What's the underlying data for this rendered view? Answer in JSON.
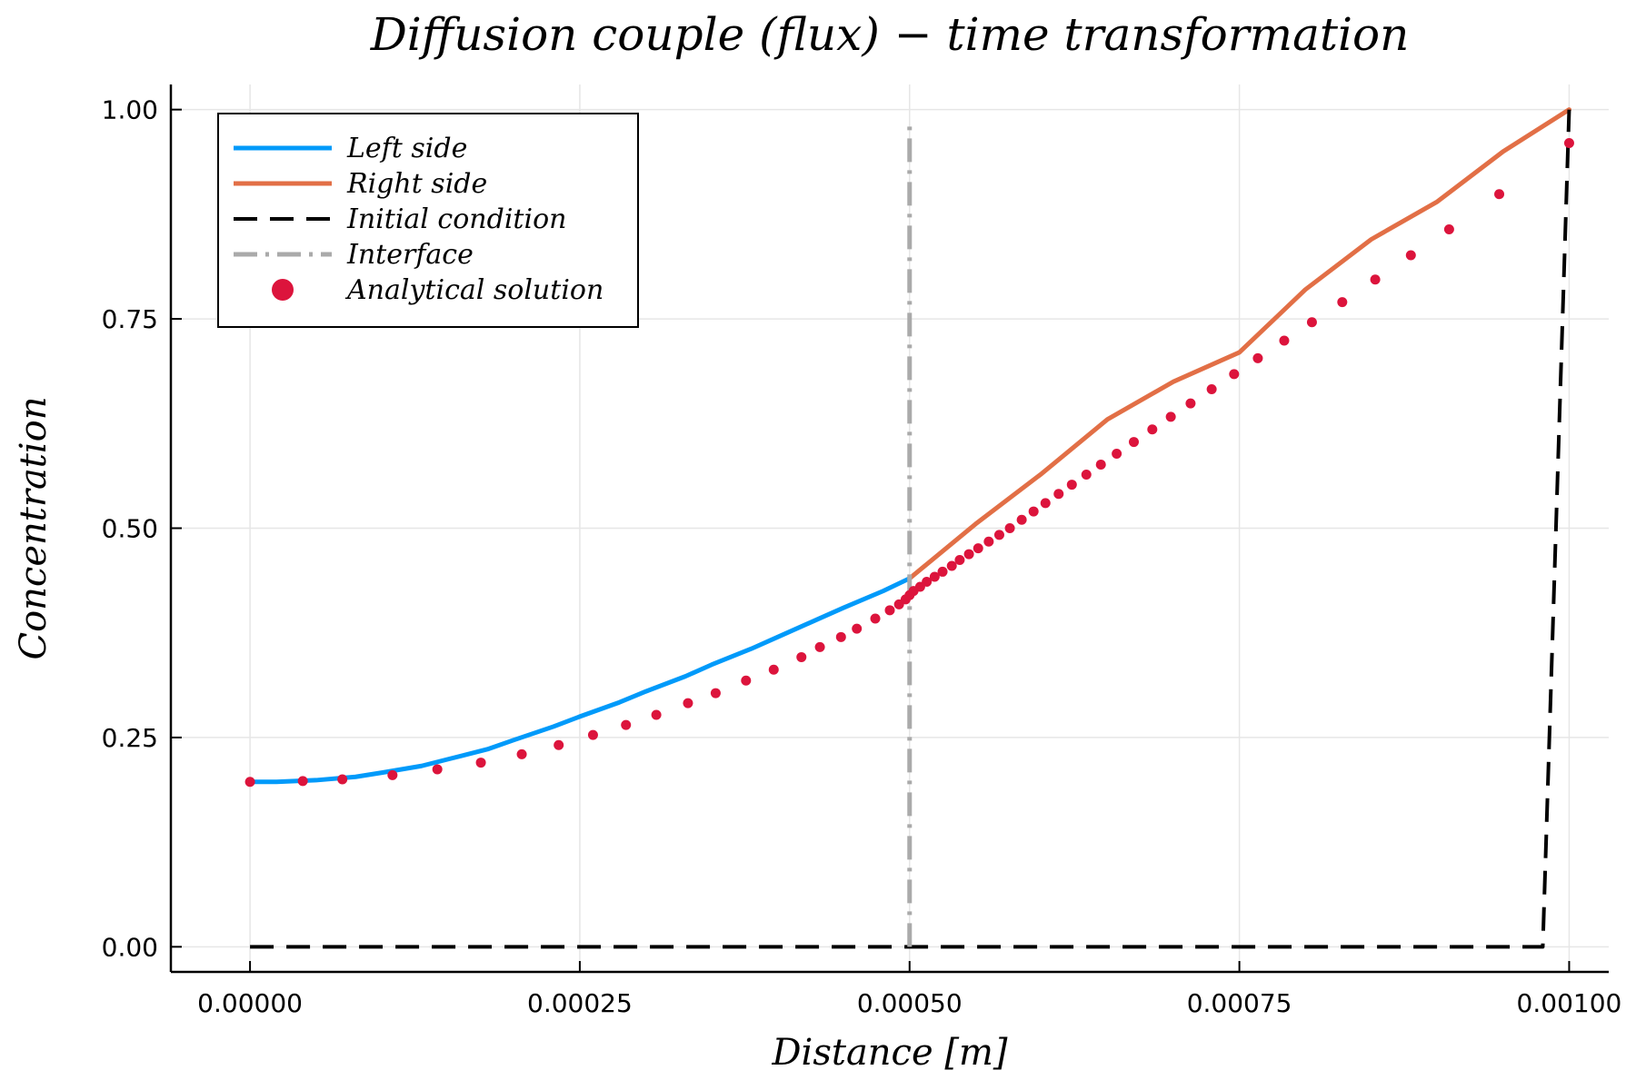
{
  "chart_data": {
    "type": "line",
    "title": "Diffusion couple (flux) − time transformation",
    "xlabel": "Distance [m]",
    "ylabel": "Concentration",
    "xlim": [
      -6e-05,
      0.00103
    ],
    "ylim": [
      -0.03,
      1.03
    ],
    "x_ticks": [
      0,
      0.00025,
      0.0005,
      0.00075,
      0.001
    ],
    "x_tick_labels": [
      "0.00000",
      "0.00025",
      "0.00050",
      "0.00075",
      "0.00100"
    ],
    "y_ticks": [
      0,
      0.25,
      0.5,
      0.75,
      1.0
    ],
    "y_tick_labels": [
      "0.00",
      "0.25",
      "0.50",
      "0.75",
      "1.00"
    ],
    "grid": true,
    "legend_position": "top-left",
    "series": [
      {
        "name": "Left side",
        "kind": "line",
        "color": "#009AFA",
        "x": [
          0,
          2e-05,
          5e-05,
          8e-05,
          0.0001,
          0.00013,
          0.00015,
          0.00018,
          0.0002,
          0.00023,
          0.00025,
          0.00028,
          0.0003,
          0.00033,
          0.00035,
          0.00038,
          0.0004,
          0.00043,
          0.00045,
          0.00048,
          0.0005
        ],
        "y": [
          0.197,
          0.197,
          0.199,
          0.203,
          0.208,
          0.216,
          0.224,
          0.236,
          0.247,
          0.263,
          0.275,
          0.292,
          0.305,
          0.323,
          0.337,
          0.356,
          0.37,
          0.391,
          0.405,
          0.425,
          0.44
        ]
      },
      {
        "name": "Right side",
        "kind": "line",
        "color": "#E26F46",
        "x": [
          0.0005,
          0.00055,
          0.0006,
          0.00065,
          0.0007,
          0.00075,
          0.0008,
          0.00085,
          0.0009,
          0.00095,
          0.001
        ],
        "y": [
          0.44,
          0.505,
          0.565,
          0.63,
          0.675,
          0.71,
          0.785,
          0.845,
          0.89,
          0.95,
          1.0
        ]
      },
      {
        "name": "Initial condition",
        "kind": "dashed-line",
        "color": "#000000",
        "x": [
          0,
          0.00098,
          0.001
        ],
        "y": [
          0,
          0,
          1
        ]
      },
      {
        "name": "Interface",
        "kind": "dashdot-line",
        "color": "#AAAAAA",
        "x": [
          0.0005,
          0.0005
        ],
        "y": [
          0,
          0.985
        ]
      },
      {
        "name": "Analytical solution",
        "kind": "scatter",
        "color": "#DC143C",
        "x": [
          0,
          4e-05,
          7e-05,
          0.000108,
          0.000142,
          0.000175,
          0.000206,
          0.000234,
          0.00026,
          0.000285,
          0.000308,
          0.000332,
          0.000353,
          0.000376,
          0.000397,
          0.000418,
          0.000432,
          0.000448,
          0.00046,
          0.000474,
          0.000485,
          0.000492,
          0.000497,
          0.0005,
          0.000503,
          0.000508,
          0.000513,
          0.000519,
          0.000525,
          0.000532,
          0.000538,
          0.000545,
          0.000552,
          0.00056,
          0.000568,
          0.000576,
          0.000585,
          0.000594,
          0.000603,
          0.000613,
          0.000623,
          0.000634,
          0.000645,
          0.000657,
          0.00067,
          0.000684,
          0.000698,
          0.000713,
          0.000729,
          0.000746,
          0.000764,
          0.000784,
          0.000805,
          0.000828,
          0.000853,
          0.00088,
          0.000909,
          0.000947,
          0.001
        ],
        "y": [
          0.197,
          0.198,
          0.2,
          0.205,
          0.212,
          0.22,
          0.23,
          0.241,
          0.253,
          0.265,
          0.277,
          0.291,
          0.303,
          0.318,
          0.331,
          0.346,
          0.358,
          0.37,
          0.38,
          0.392,
          0.402,
          0.409,
          0.415,
          0.42,
          0.425,
          0.43,
          0.436,
          0.442,
          0.448,
          0.455,
          0.462,
          0.469,
          0.476,
          0.484,
          0.492,
          0.5,
          0.51,
          0.52,
          0.53,
          0.541,
          0.552,
          0.564,
          0.576,
          0.589,
          0.603,
          0.618,
          0.633,
          0.649,
          0.666,
          0.684,
          0.703,
          0.724,
          0.746,
          0.77,
          0.797,
          0.826,
          0.857,
          0.899,
          0.96
        ]
      }
    ]
  }
}
